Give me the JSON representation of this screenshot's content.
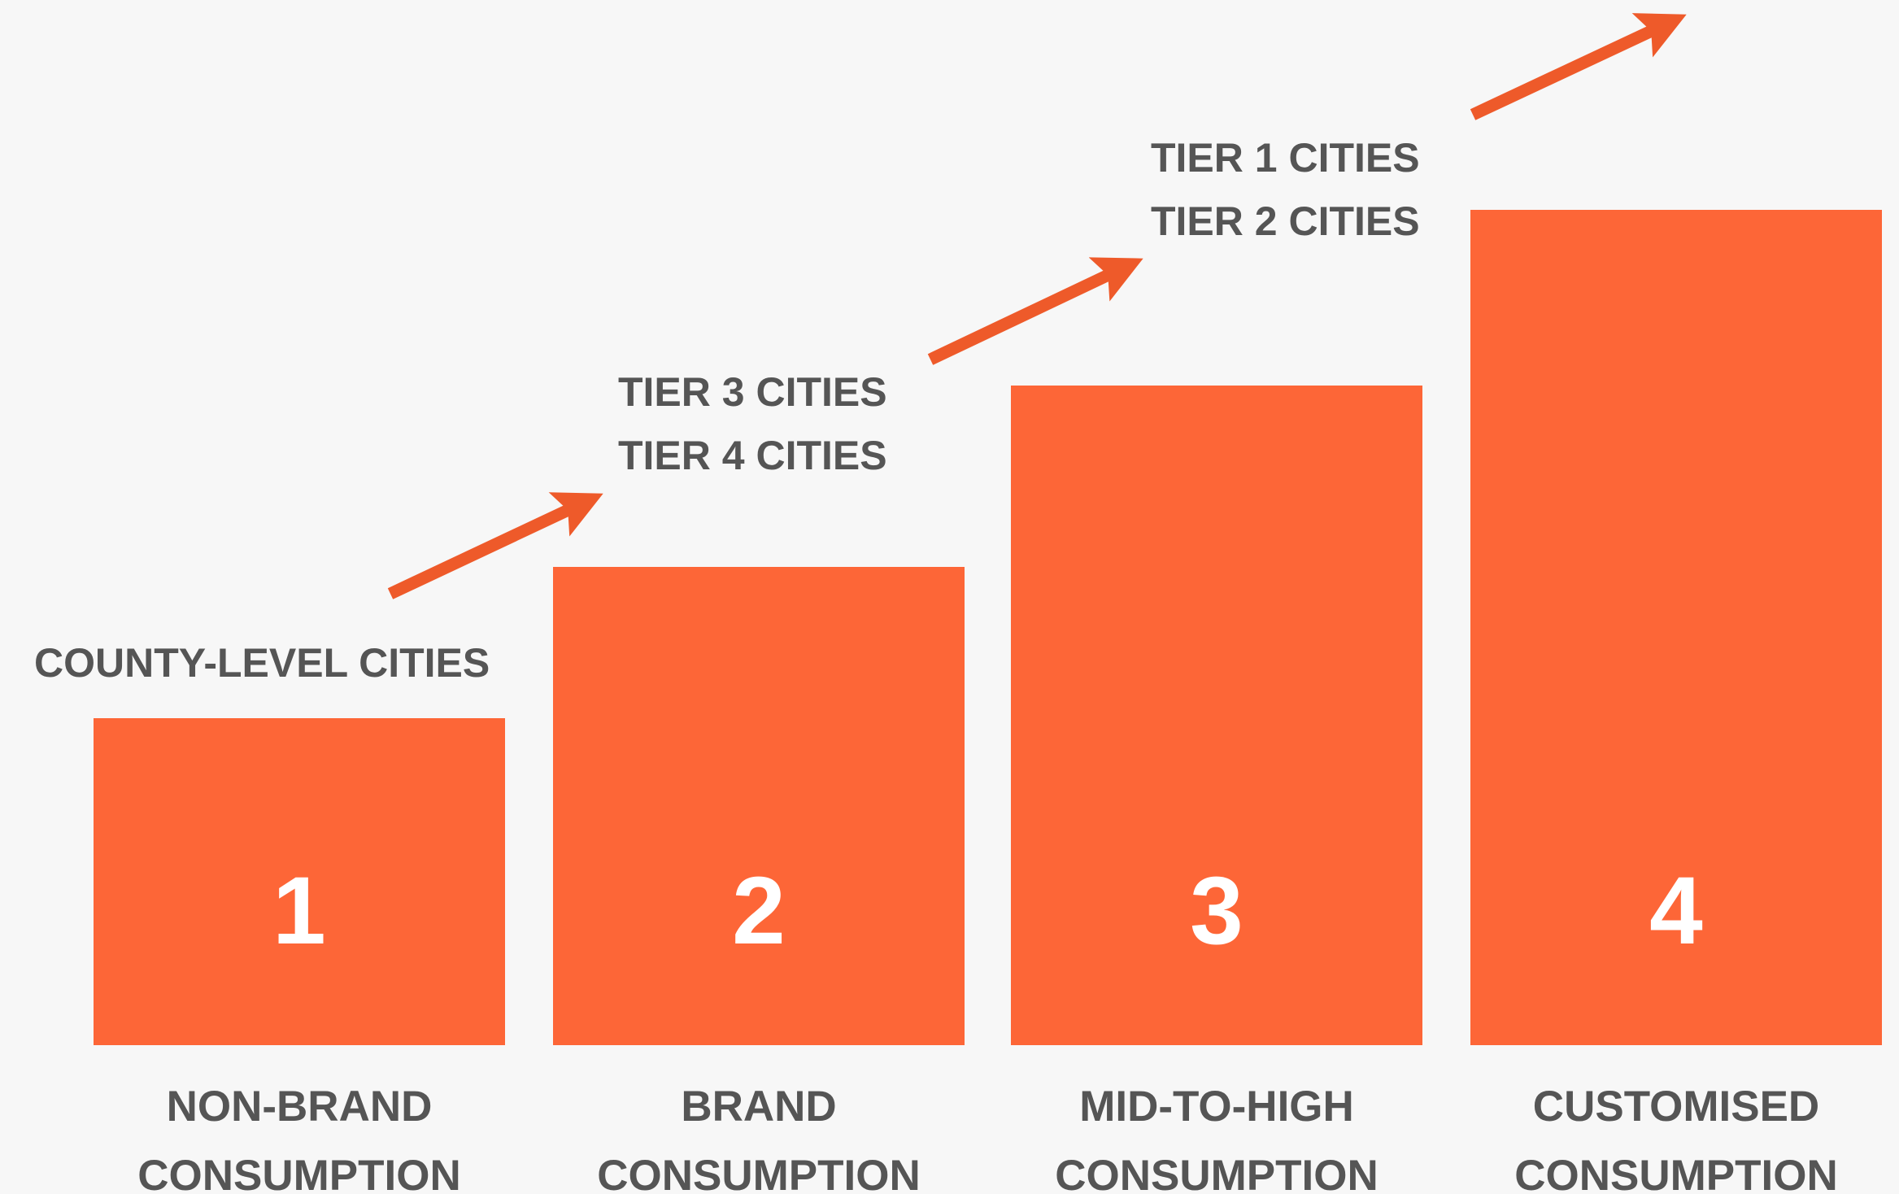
{
  "steps": [
    {
      "number": "1",
      "label": [
        "NON-BRAND",
        "CONSUMPTION"
      ],
      "cities": [
        "COUNTY-LEVEL CITIES"
      ]
    },
    {
      "number": "2",
      "label": [
        "BRAND",
        "CONSUMPTION"
      ],
      "cities": [
        "TIER 3 CITIES",
        "TIER 4 CITIES"
      ]
    },
    {
      "number": "3",
      "label": [
        "MID-TO-HIGH",
        "CONSUMPTION"
      ],
      "cities": [
        "TIER 1 CITIES",
        "TIER 2 CITIES"
      ]
    },
    {
      "number": "4",
      "label": [
        "CUSTOMISED",
        "CONSUMPTION"
      ],
      "cities": []
    }
  ]
}
